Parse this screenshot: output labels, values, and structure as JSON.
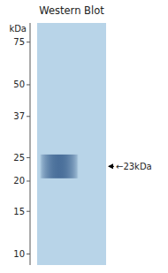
{
  "chart_data": {
    "type": "gel",
    "title": "Western Blot",
    "y_label": "kDa",
    "log": "y",
    "ylim": [
      9,
      90
    ],
    "yticks": [
      75,
      50,
      37,
      25,
      20,
      15,
      10
    ],
    "values": [
      23
    ],
    "value_labels": [
      "←23kDa"
    ],
    "data_labels": true,
    "color": "#4a6f9a"
  }
}
